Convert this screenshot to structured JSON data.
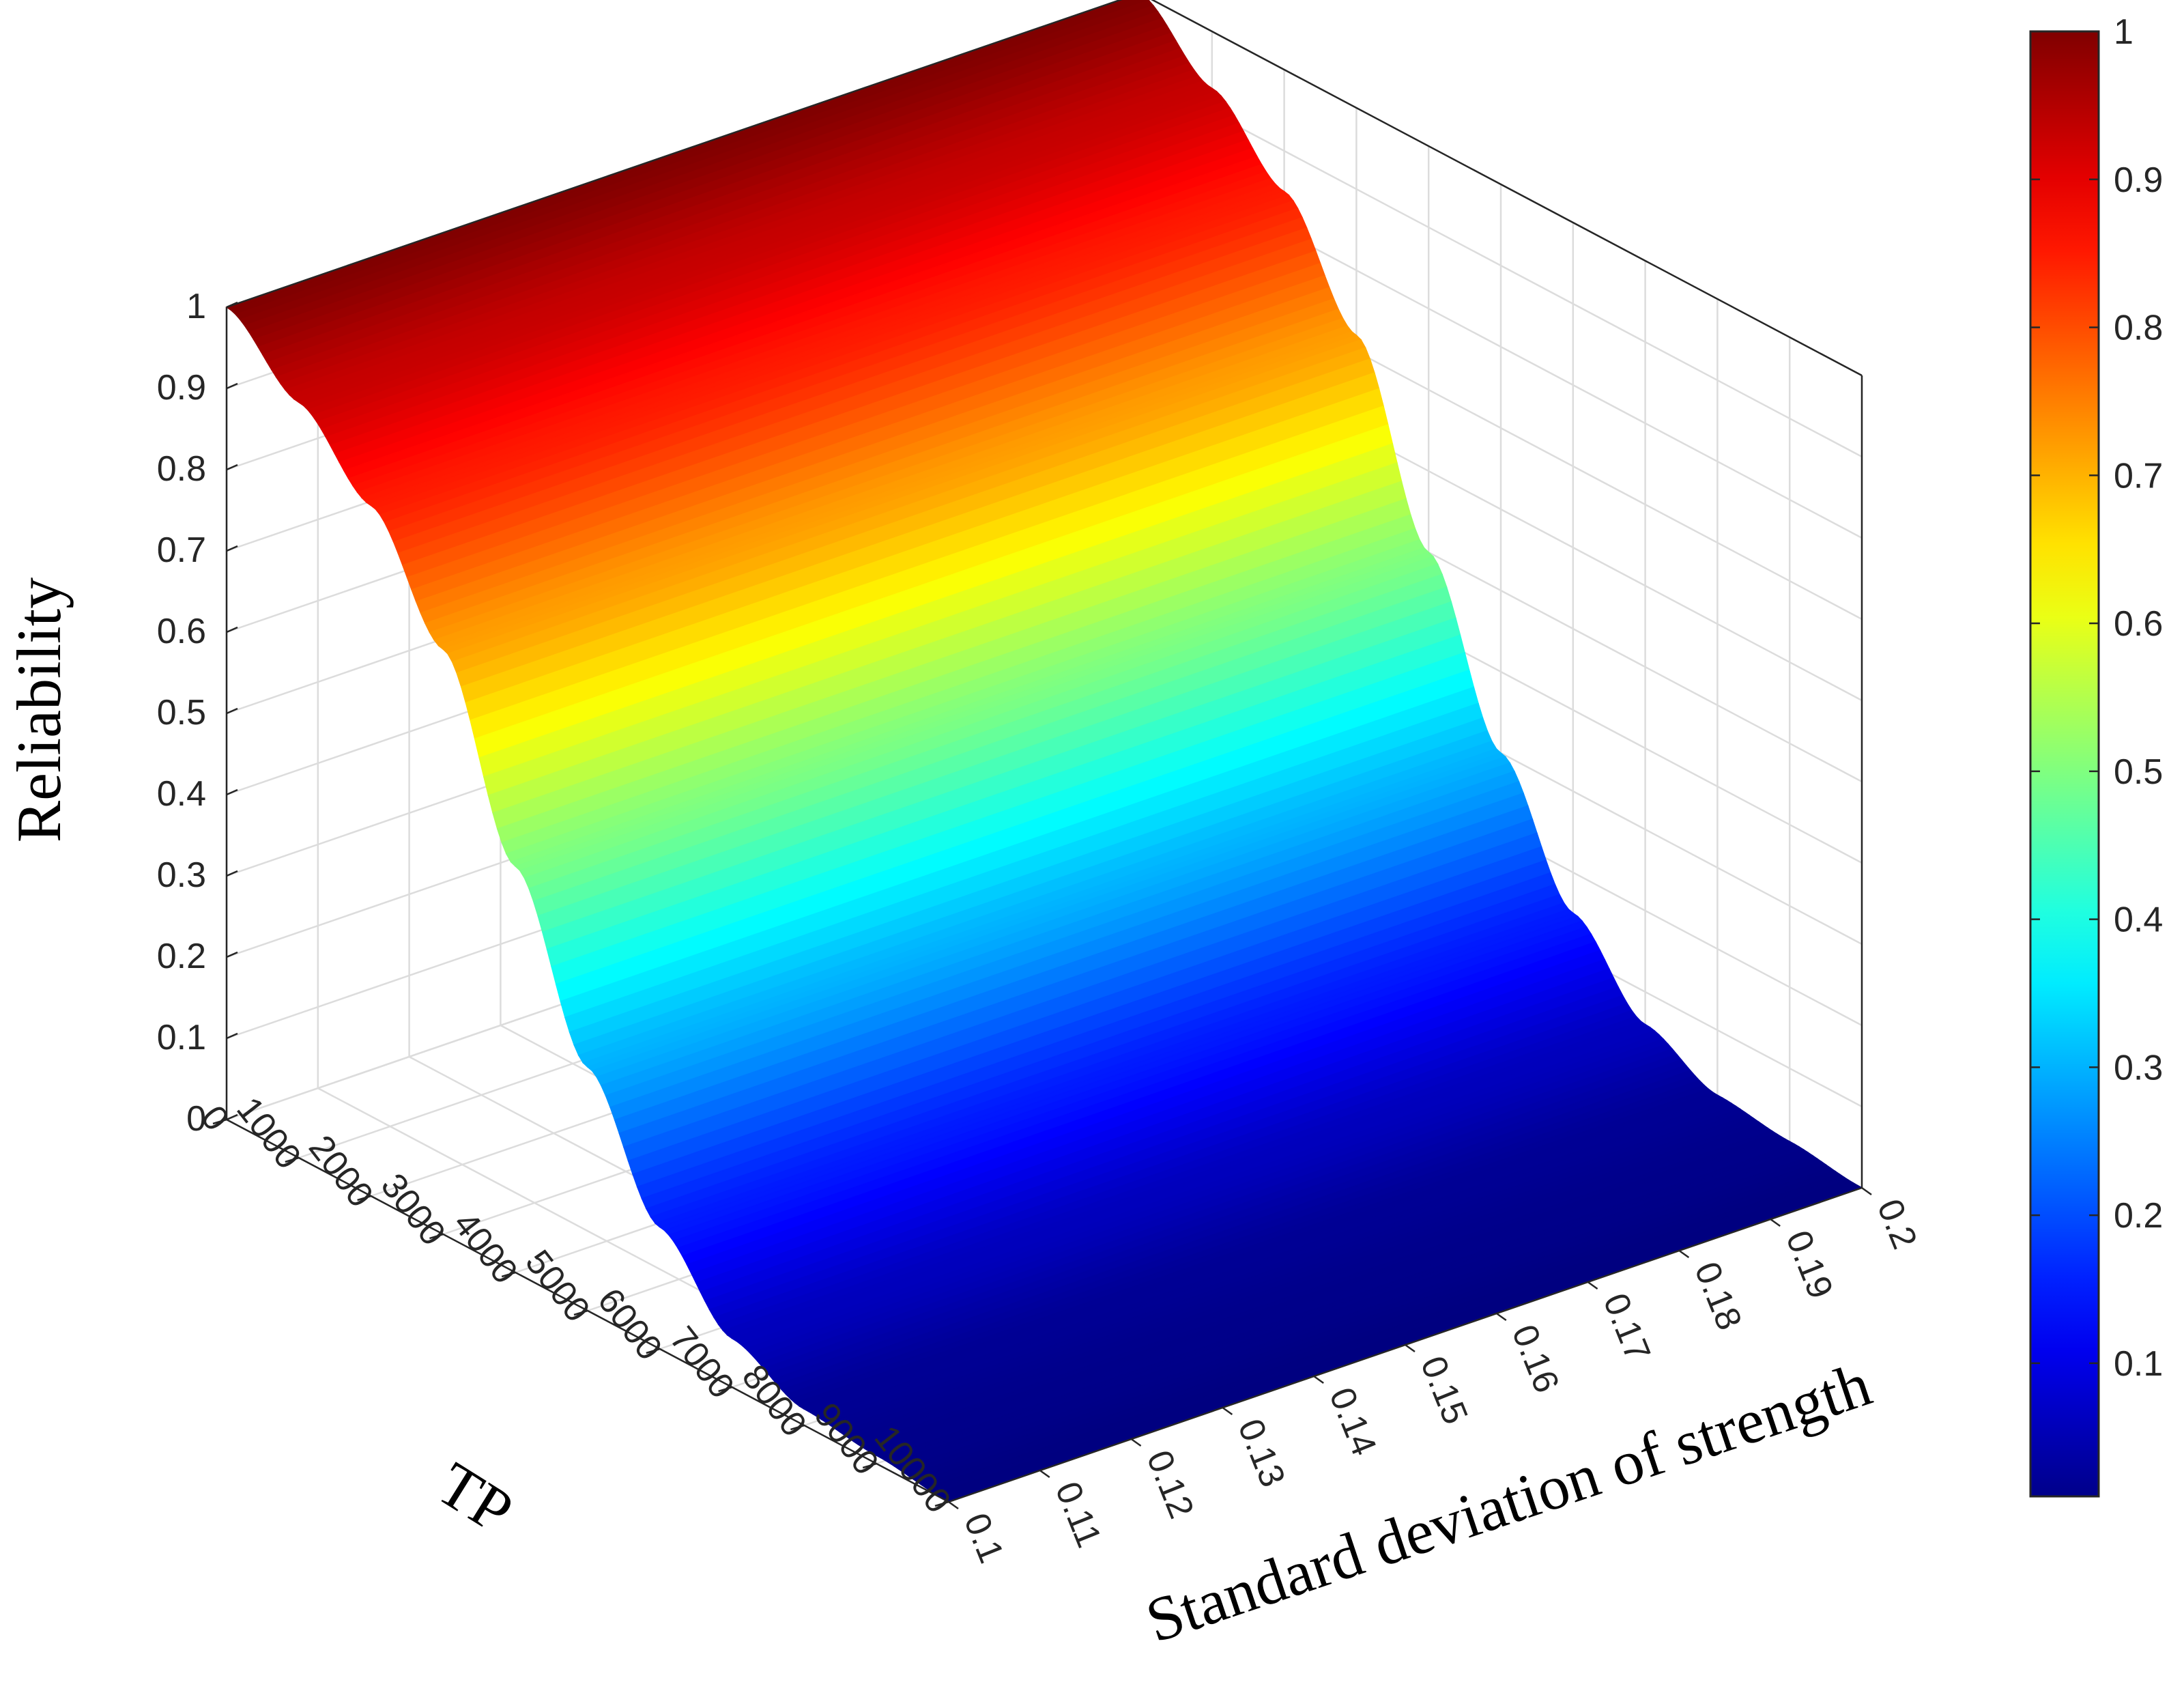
{
  "chart_data": {
    "type": "surface",
    "title": "",
    "xlabel": "TP",
    "ylabel": "Standard deviation of strength",
    "zlabel": "Reliability",
    "x_ticks": [
      "0",
      "1000",
      "2000",
      "3000",
      "4000",
      "5000",
      "6000",
      "7000",
      "8000",
      "9000",
      "10000"
    ],
    "y_ticks": [
      "0.1",
      "0.11",
      "0.12",
      "0.13",
      "0.14",
      "0.15",
      "0.16",
      "0.17",
      "0.18",
      "0.19",
      "0.2"
    ],
    "z_ticks": [
      "0",
      "0.1",
      "0.2",
      "0.3",
      "0.4",
      "0.5",
      "0.6",
      "0.7",
      "0.8",
      "0.9",
      "1"
    ],
    "xlim": [
      0,
      10000
    ],
    "ylim": [
      0.1,
      0.2
    ],
    "zlim": [
      0,
      1
    ],
    "grid": true,
    "colormap": "jet",
    "colorbar": {
      "placement": "right",
      "ticks": [
        "0.1",
        "0.2",
        "0.3",
        "0.4",
        "0.5",
        "0.6",
        "0.7",
        "0.8",
        "0.9",
        "1"
      ],
      "range": [
        0.01,
        1
      ]
    },
    "surface": {
      "description_free": true,
      "x": [
        0,
        1000,
        2000,
        3000,
        4000,
        5000,
        6000,
        7000,
        8000,
        9000,
        10000
      ],
      "reliability": [
        1.0,
        0.93,
        0.85,
        0.72,
        0.5,
        0.3,
        0.15,
        0.06,
        0.02,
        0.01,
        0.0
      ]
    }
  }
}
